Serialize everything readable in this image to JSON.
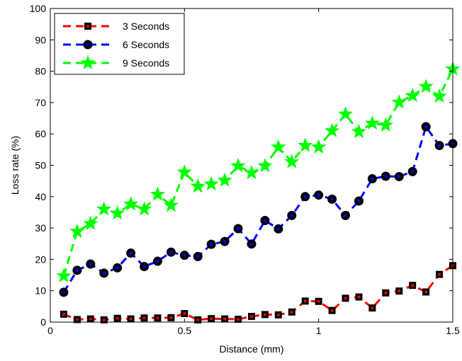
{
  "chart_data": {
    "type": "line",
    "xlabel": "Distance (mm)",
    "ylabel": "Loss rate (%)",
    "xlim": [
      0,
      1.5
    ],
    "ylim": [
      0,
      100
    ],
    "xticks": [
      0,
      0.5,
      1,
      1.5
    ],
    "xtick_labels": [
      "0",
      "0.5",
      "1",
      "1.5"
    ],
    "yticks": [
      0,
      10,
      20,
      30,
      40,
      50,
      60,
      70,
      80,
      90,
      100
    ],
    "ytick_labels": [
      "0",
      "10",
      "20",
      "30",
      "40",
      "50",
      "60",
      "70",
      "80",
      "90",
      "100"
    ],
    "grid": false,
    "legend_position": "top-left",
    "x": [
      0.05,
      0.1,
      0.15,
      0.2,
      0.25,
      0.3,
      0.35,
      0.4,
      0.45,
      0.5,
      0.55,
      0.6,
      0.65,
      0.7,
      0.75,
      0.8,
      0.85,
      0.9,
      0.95,
      1.0,
      1.05,
      1.1,
      1.15,
      1.2,
      1.25,
      1.3,
      1.35,
      1.4,
      1.45,
      1.5
    ],
    "series": [
      {
        "name": "3 Seconds",
        "color": "#ff0000",
        "marker": "square",
        "marker_fill": "#ff0000",
        "marker_edge": "#000000",
        "values": [
          2.5,
          0.8,
          1.0,
          0.7,
          1.2,
          1.0,
          1.3,
          1.3,
          1.4,
          2.7,
          0.7,
          1.1,
          1.0,
          0.9,
          1.8,
          2.4,
          2.3,
          3.2,
          6.7,
          6.6,
          3.7,
          7.6,
          8.0,
          4.5,
          9.3,
          9.9,
          11.7,
          9.6,
          15.2,
          18.0
        ]
      },
      {
        "name": "6 Seconds",
        "color": "#0000ff",
        "marker": "circle",
        "marker_fill": "#0000ff",
        "marker_edge": "#000000",
        "values": [
          9.5,
          16.5,
          18.5,
          15.6,
          17.3,
          22.0,
          17.7,
          19.4,
          22.3,
          21.3,
          20.9,
          24.8,
          25.7,
          29.8,
          24.9,
          32.4,
          29.7,
          34.0,
          40.0,
          40.5,
          39.2,
          34.0,
          38.6,
          45.7,
          46.5,
          46.4,
          48.0,
          62.3,
          56.3,
          56.9
        ]
      },
      {
        "name": "9 Seconds",
        "color": "#00ff00",
        "marker": "star",
        "marker_fill": "#00ff00",
        "marker_edge": "#00ff00",
        "values": [
          14.7,
          28.9,
          31.4,
          36.0,
          34.7,
          37.6,
          36.0,
          40.7,
          37.2,
          47.8,
          43.3,
          44.0,
          45.2,
          49.8,
          47.6,
          49.8,
          55.8,
          51.1,
          56.3,
          55.8,
          61.0,
          66.3,
          60.7,
          63.4,
          62.8,
          70.1,
          72.2,
          75.1,
          72.0,
          80.7
        ]
      }
    ]
  }
}
